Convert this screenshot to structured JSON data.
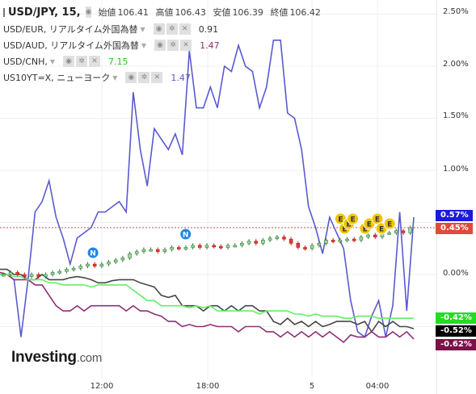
{
  "legend": {
    "main": {
      "symbol": "USD/JPY, 15,",
      "open_label": "始値",
      "open": "106.41",
      "high_label": "高値",
      "high": "106.43",
      "low_label": "安値",
      "low": "106.39",
      "close_label": "終値",
      "close": "106.42"
    },
    "items": [
      {
        "label": "USD/EUR, リアルタイム外国為替",
        "value": "0.91",
        "color": "#333333"
      },
      {
        "label": "USD/AUD, リアルタイム外国為替",
        "value": "1.47",
        "color": "#8e2f6e"
      },
      {
        "label": "USD/CNH,",
        "value": "7.15",
        "color": "#22cc22"
      },
      {
        "label": "US10YT=X, ニューヨーク",
        "value": "1.47",
        "color": "#5555cc"
      }
    ]
  },
  "y_axis_ticks": [
    "2.50%",
    "2.00%",
    "1.50%",
    "1.00%",
    "0.00%"
  ],
  "x_axis_ticks": [
    "12:00",
    "18:00",
    "5",
    "04:00"
  ],
  "value_tags": [
    {
      "text": "0.57%",
      "color": "#1a1adc"
    },
    {
      "text": "0.45%",
      "color": "#e04a3b"
    },
    {
      "text": "-0.42%",
      "color": "#22dd22"
    },
    {
      "text": "-0.52%",
      "color": "#000000"
    },
    {
      "text": "-0.62%",
      "color": "#7b1148"
    }
  ],
  "markers": [
    {
      "letter": "N",
      "color": "#1e88e5",
      "x_time": "11:30"
    },
    {
      "letter": "N",
      "color": "#1e88e5",
      "x_time": "16:45"
    },
    {
      "letter": "E",
      "color": "#f2c500",
      "x_time": "01:45"
    },
    {
      "letter": "E",
      "color": "#f2c500",
      "x_time": "02:00"
    },
    {
      "letter": "E",
      "color": "#f2c500",
      "x_time": "02:15"
    },
    {
      "letter": "E",
      "color": "#f2c500",
      "x_time": "02:30"
    },
    {
      "letter": "E",
      "color": "#f2c500",
      "x_time": "03:15"
    },
    {
      "letter": "E",
      "color": "#f2c500",
      "x_time": "03:30"
    },
    {
      "letter": "E",
      "color": "#f2c500",
      "x_time": "04:00"
    },
    {
      "letter": "E",
      "color": "#f2c500",
      "x_time": "04:15"
    },
    {
      "letter": "E",
      "color": "#f2c500",
      "x_time": "04:45"
    }
  ],
  "brand": {
    "name": "Investing",
    "suffix": ".com"
  },
  "chart_data": {
    "type": "line",
    "ylim": [
      -0.75,
      2.55
    ],
    "grid": true,
    "series": [
      {
        "name": "US10YT=X",
        "color": "#5a5acf",
        "values": [
          0.0,
          0.0,
          -0.05,
          -0.6,
          -0.05,
          0.6,
          0.7,
          0.9,
          0.55,
          0.35,
          0.1,
          0.35,
          0.4,
          0.45,
          0.6,
          0.6,
          0.65,
          0.7,
          0.6,
          1.75,
          1.2,
          0.85,
          1.4,
          1.3,
          1.2,
          1.35,
          1.15,
          2.15,
          1.6,
          1.6,
          1.8,
          1.6,
          2.0,
          1.95,
          2.2,
          2.0,
          1.95,
          1.6,
          1.8,
          2.25,
          2.25,
          1.55,
          1.5,
          1.2,
          0.65,
          0.45,
          0.2,
          0.55,
          0.4,
          0.25,
          -0.25,
          -0.55,
          -0.6,
          -0.4,
          -0.25,
          -0.6,
          -0.3,
          0.6,
          -0.35,
          0.55
        ]
      },
      {
        "name": "USD/EUR",
        "color": "#474747",
        "values": [
          0.05,
          0.05,
          0.0,
          0.0,
          -0.05,
          -0.05,
          0.0,
          -0.05,
          -0.05,
          -0.05,
          -0.03,
          -0.02,
          -0.03,
          -0.05,
          -0.08,
          -0.08,
          -0.06,
          -0.05,
          -0.05,
          -0.05,
          -0.08,
          -0.1,
          -0.12,
          -0.2,
          -0.22,
          -0.2,
          -0.3,
          -0.3,
          -0.3,
          -0.35,
          -0.3,
          -0.3,
          -0.35,
          -0.3,
          -0.35,
          -0.3,
          -0.3,
          -0.35,
          -0.35,
          -0.45,
          -0.48,
          -0.42,
          -0.48,
          -0.45,
          -0.5,
          -0.45,
          -0.5,
          -0.48,
          -0.45,
          -0.45,
          -0.45,
          -0.48,
          -0.45,
          -0.55,
          -0.45,
          -0.5,
          -0.45,
          -0.5,
          -0.5,
          -0.52
        ]
      },
      {
        "name": "USD/AUD",
        "color": "#8e3076",
        "values": [
          0.02,
          0.0,
          -0.05,
          -0.05,
          -0.05,
          -0.1,
          -0.1,
          -0.2,
          -0.3,
          -0.35,
          -0.35,
          -0.3,
          -0.35,
          -0.3,
          -0.3,
          -0.3,
          -0.3,
          -0.3,
          -0.35,
          -0.3,
          -0.35,
          -0.35,
          -0.38,
          -0.4,
          -0.45,
          -0.45,
          -0.5,
          -0.48,
          -0.5,
          -0.5,
          -0.48,
          -0.5,
          -0.5,
          -0.5,
          -0.55,
          -0.5,
          -0.5,
          -0.5,
          -0.55,
          -0.55,
          -0.6,
          -0.55,
          -0.6,
          -0.55,
          -0.6,
          -0.55,
          -0.6,
          -0.55,
          -0.6,
          -0.65,
          -0.58,
          -0.6,
          -0.6,
          -0.55,
          -0.6,
          -0.6,
          -0.55,
          -0.6,
          -0.55,
          -0.62
        ]
      },
      {
        "name": "USD/CNH",
        "color": "#66ee66",
        "values": [
          0.0,
          0.0,
          -0.02,
          -0.02,
          -0.05,
          -0.05,
          -0.05,
          -0.08,
          -0.08,
          -0.1,
          -0.1,
          -0.1,
          -0.1,
          -0.12,
          -0.1,
          -0.1,
          -0.1,
          -0.1,
          -0.1,
          -0.15,
          -0.2,
          -0.25,
          -0.25,
          -0.3,
          -0.3,
          -0.3,
          -0.3,
          -0.32,
          -0.3,
          -0.32,
          -0.3,
          -0.35,
          -0.35,
          -0.35,
          -0.35,
          -0.35,
          -0.35,
          -0.38,
          -0.35,
          -0.35,
          -0.35,
          -0.35,
          -0.38,
          -0.38,
          -0.4,
          -0.38,
          -0.4,
          -0.4,
          -0.4,
          -0.42,
          -0.42,
          -0.4,
          -0.4,
          -0.4,
          -0.42,
          -0.42,
          -0.42,
          -0.42,
          -0.42,
          -0.42
        ]
      },
      {
        "name": "USD/JPY",
        "color": "#e04a3b",
        "values": [
          0.0,
          0.0,
          0.02,
          0.0,
          -0.02,
          0.0,
          -0.02,
          0.0,
          0.02,
          0.03,
          0.05,
          0.06,
          0.08,
          0.1,
          0.08,
          0.1,
          0.12,
          0.14,
          0.16,
          0.2,
          0.22,
          0.24,
          0.24,
          0.22,
          0.24,
          0.26,
          0.25,
          0.26,
          0.28,
          0.26,
          0.28,
          0.27,
          0.26,
          0.28,
          0.28,
          0.3,
          0.32,
          0.3,
          0.33,
          0.35,
          0.36,
          0.34,
          0.3,
          0.26,
          0.25,
          0.28,
          0.3,
          0.33,
          0.32,
          0.33,
          0.34,
          0.33,
          0.36,
          0.38,
          0.36,
          0.4,
          0.4,
          0.42,
          0.4,
          0.45
        ]
      }
    ]
  }
}
